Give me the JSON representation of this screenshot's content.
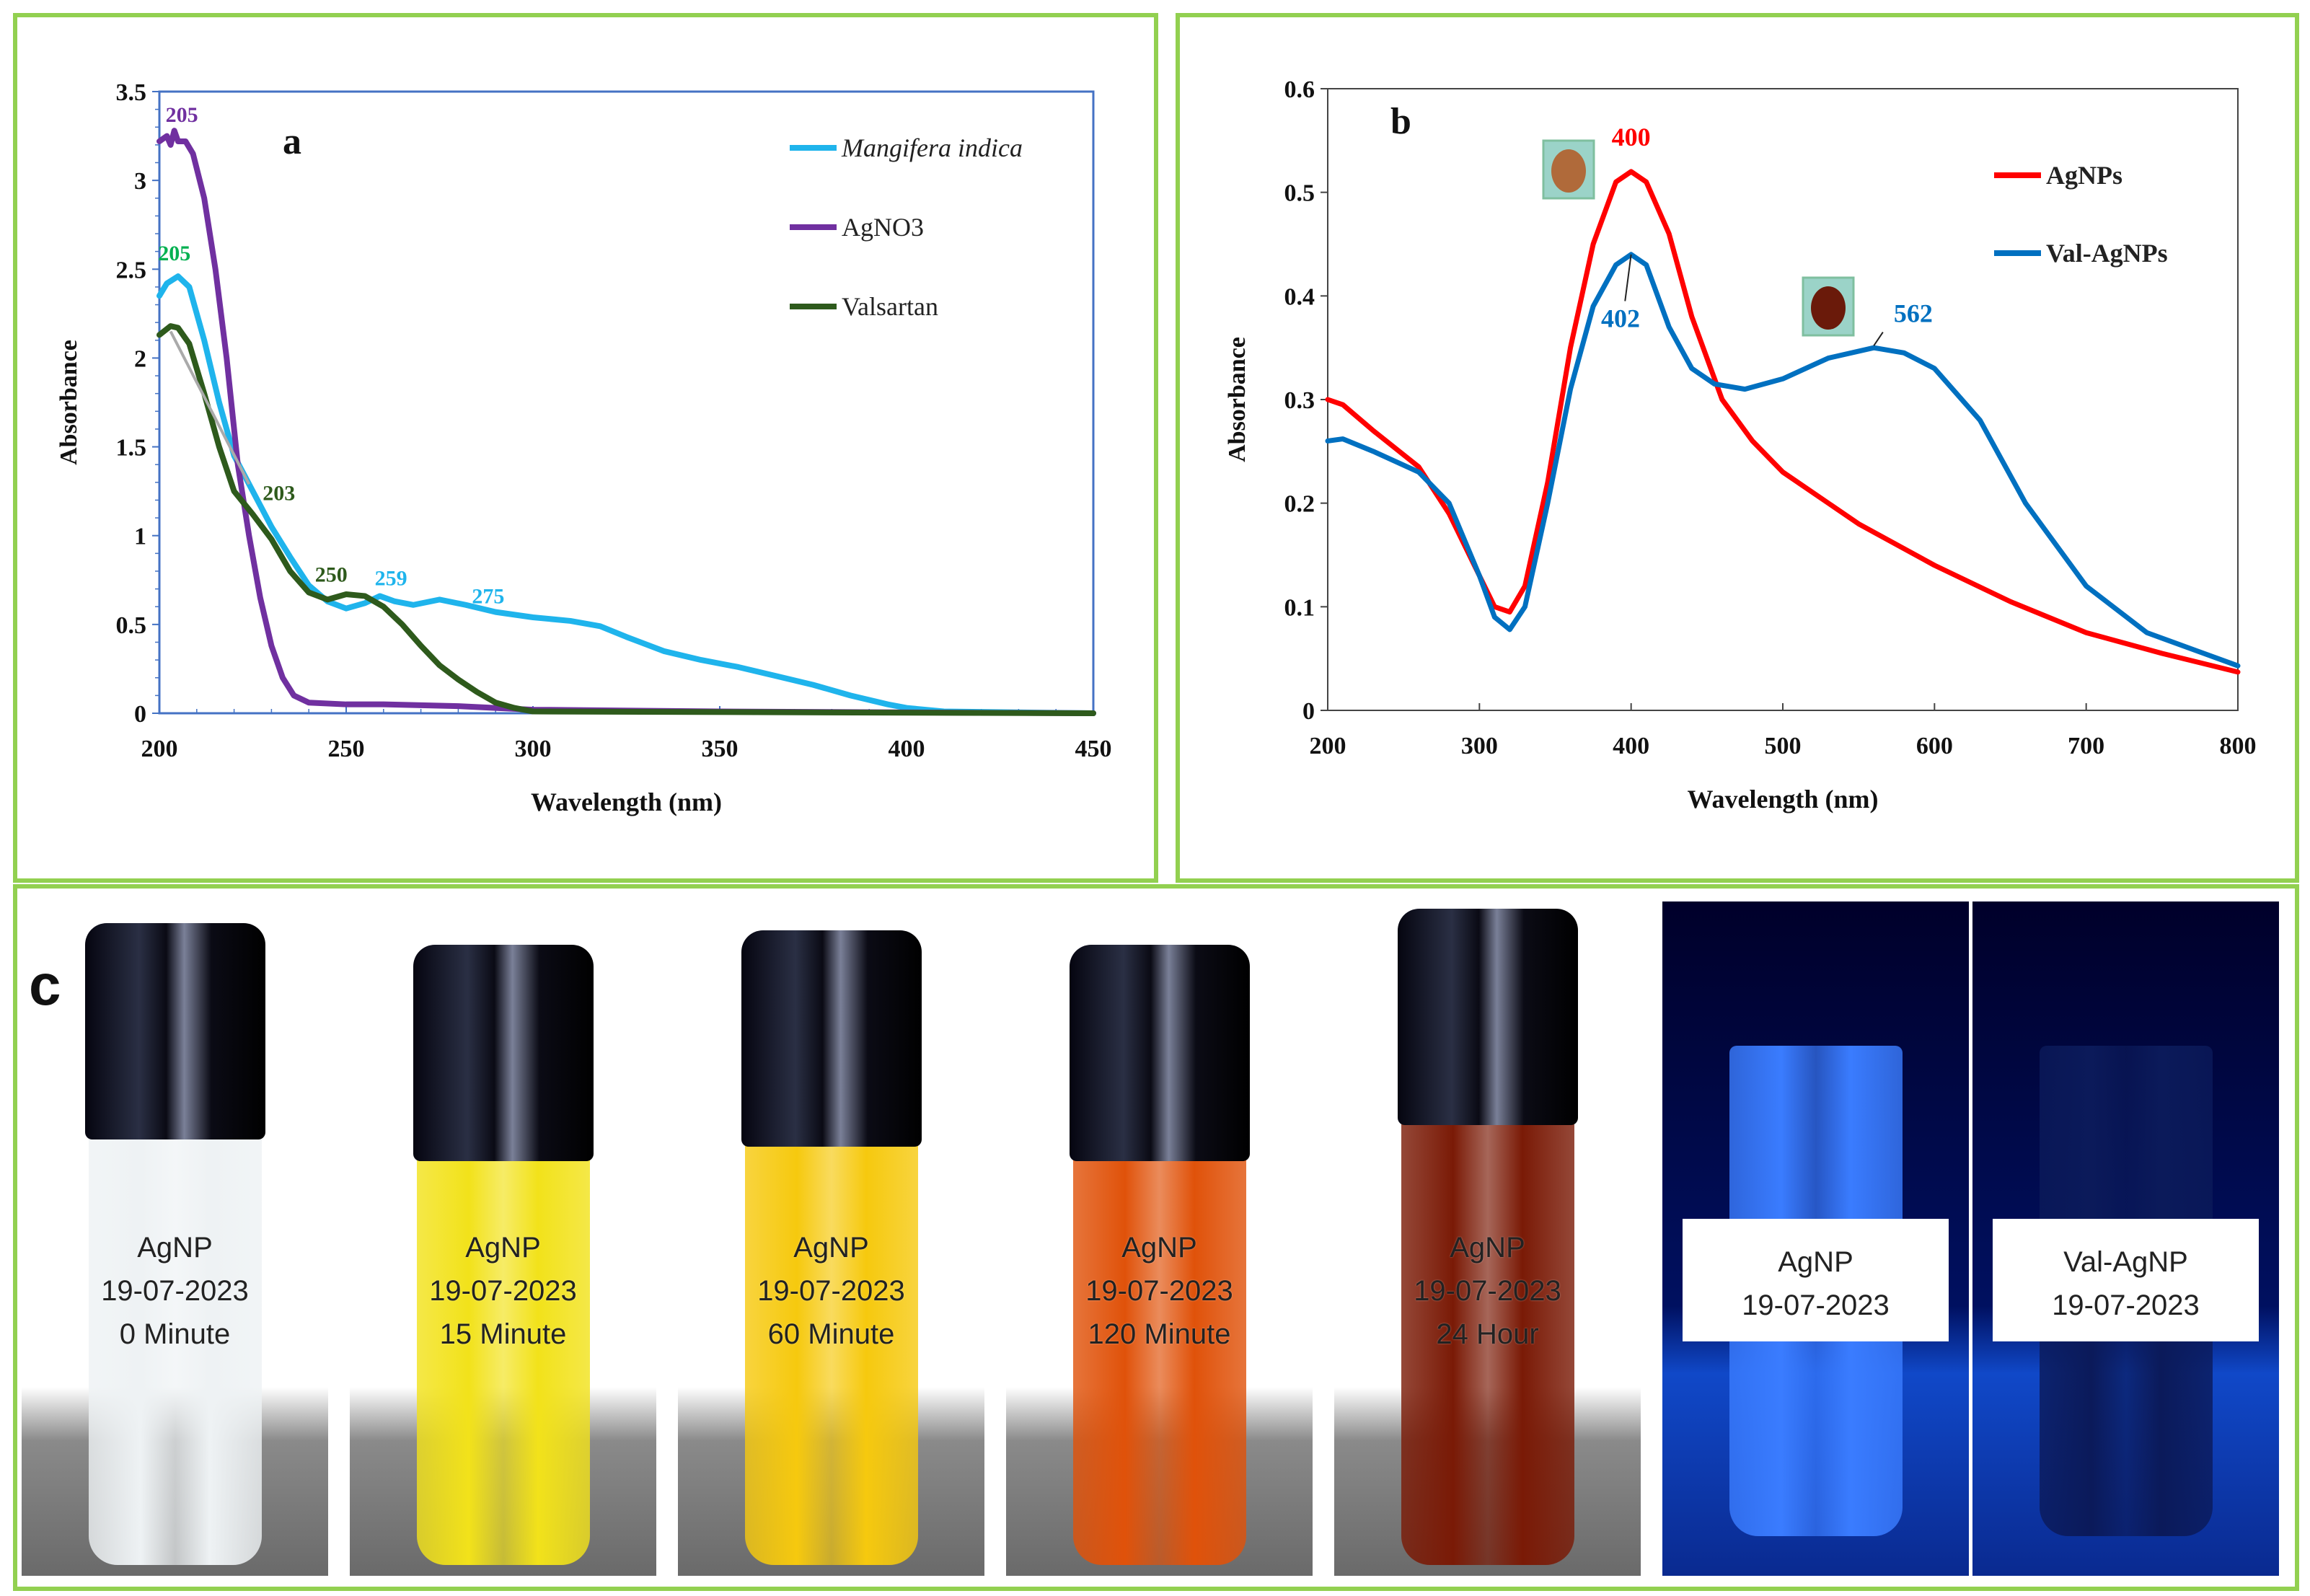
{
  "chart_data": [
    {
      "type": "line",
      "panel_label": "a",
      "xlabel": "Wavelength (nm)",
      "ylabel": "Absorbance",
      "xlim": [
        200,
        450
      ],
      "ylim": [
        0,
        3.5
      ],
      "xticks": [
        "200",
        "250",
        "300",
        "350",
        "400",
        "450"
      ],
      "yticks": [
        "0",
        "0.5",
        "1",
        "1.5",
        "2",
        "2.5",
        "3",
        "3.5"
      ],
      "legend_position": "top-right",
      "series": [
        {
          "name": "Mangifera indica",
          "color": "#1fb4ec",
          "x": [
            200,
            202,
            205,
            208,
            212,
            216,
            220,
            225,
            230,
            235,
            240,
            245,
            250,
            255,
            259,
            263,
            268,
            275,
            282,
            290,
            300,
            310,
            318,
            325,
            335,
            345,
            355,
            365,
            375,
            385,
            395,
            400,
            410,
            450
          ],
          "y": [
            2.35,
            2.42,
            2.46,
            2.4,
            2.1,
            1.75,
            1.45,
            1.25,
            1.05,
            0.88,
            0.72,
            0.63,
            0.59,
            0.62,
            0.66,
            0.63,
            0.61,
            0.64,
            0.61,
            0.57,
            0.54,
            0.52,
            0.49,
            0.43,
            0.35,
            0.3,
            0.26,
            0.21,
            0.16,
            0.1,
            0.05,
            0.03,
            0.01,
            0
          ]
        },
        {
          "name": "AgNO3",
          "color": "#7030a0",
          "x": [
            200,
            202,
            203,
            204,
            205,
            207,
            209,
            212,
            215,
            218,
            221,
            224,
            227,
            230,
            233,
            236,
            240,
            250,
            260,
            280,
            300,
            350,
            450
          ],
          "y": [
            3.22,
            3.25,
            3.2,
            3.28,
            3.22,
            3.22,
            3.15,
            2.9,
            2.5,
            2.0,
            1.4,
            1.0,
            0.65,
            0.38,
            0.2,
            0.1,
            0.06,
            0.05,
            0.05,
            0.04,
            0.02,
            0.01,
            0
          ]
        },
        {
          "name": "Valsartan",
          "color": "#2e5a1c",
          "x": [
            200,
            203,
            205,
            208,
            212,
            216,
            220,
            225,
            230,
            235,
            240,
            245,
            250,
            255,
            260,
            265,
            270,
            275,
            280,
            285,
            290,
            295,
            300,
            450
          ],
          "y": [
            2.13,
            2.18,
            2.17,
            2.08,
            1.8,
            1.5,
            1.25,
            1.12,
            0.98,
            0.8,
            0.68,
            0.64,
            0.67,
            0.66,
            0.6,
            0.5,
            0.38,
            0.27,
            0.19,
            0.12,
            0.06,
            0.03,
            0.01,
            0
          ]
        }
      ],
      "annotations": [
        {
          "text": "205",
          "x": 206,
          "y": 3.33,
          "color": "#7030a0"
        },
        {
          "text": "205",
          "x": 204,
          "y": 2.55,
          "color": "#00b050"
        },
        {
          "text": "203",
          "x": 232,
          "y": 1.2,
          "color": "#2e5a1c"
        },
        {
          "text": "250",
          "x": 246,
          "y": 0.74,
          "color": "#2e5a1c"
        },
        {
          "text": "259",
          "x": 262,
          "y": 0.72,
          "color": "#1fb4ec"
        },
        {
          "text": "275",
          "x": 288,
          "y": 0.62,
          "color": "#1fb4ec"
        }
      ]
    },
    {
      "type": "line",
      "panel_label": "b",
      "xlabel": "Wavelength (nm)",
      "ylabel": "Absorbance",
      "xlim": [
        200,
        800
      ],
      "ylim": [
        0,
        0.6
      ],
      "xticks": [
        "200",
        "300",
        "400",
        "500",
        "600",
        "700",
        "800"
      ],
      "yticks": [
        "0",
        "0.1",
        "0.2",
        "0.3",
        "0.4",
        "0.5",
        "0.6"
      ],
      "legend_position": "top-right",
      "series": [
        {
          "name": "AgNPs",
          "color": "#ff0000",
          "x": [
            200,
            210,
            230,
            260,
            280,
            300,
            310,
            320,
            330,
            345,
            360,
            375,
            390,
            400,
            410,
            425,
            440,
            460,
            480,
            500,
            550,
            600,
            650,
            700,
            750,
            800
          ],
          "y": [
            0.3,
            0.295,
            0.27,
            0.235,
            0.19,
            0.13,
            0.1,
            0.095,
            0.12,
            0.22,
            0.35,
            0.45,
            0.51,
            0.52,
            0.51,
            0.46,
            0.38,
            0.3,
            0.26,
            0.23,
            0.18,
            0.14,
            0.105,
            0.075,
            0.055,
            0.037
          ]
        },
        {
          "name": "Val-AgNPs",
          "color": "#0070c0",
          "x": [
            200,
            210,
            230,
            260,
            280,
            300,
            310,
            320,
            330,
            345,
            360,
            375,
            390,
            400,
            410,
            425,
            440,
            455,
            475,
            500,
            530,
            560,
            580,
            600,
            630,
            660,
            700,
            740,
            800
          ],
          "y": [
            0.26,
            0.262,
            0.25,
            0.23,
            0.2,
            0.13,
            0.09,
            0.078,
            0.1,
            0.2,
            0.31,
            0.39,
            0.43,
            0.44,
            0.43,
            0.37,
            0.33,
            0.315,
            0.31,
            0.32,
            0.34,
            0.35,
            0.345,
            0.33,
            0.28,
            0.2,
            0.12,
            0.075,
            0.043
          ]
        }
      ],
      "annotations": [
        {
          "text": "400",
          "x": 400,
          "y": 0.545,
          "color": "#ff0000"
        },
        {
          "text": "402",
          "x": 393,
          "y": 0.37,
          "color": "#0070c0"
        },
        {
          "text": "562",
          "x": 586,
          "y": 0.375,
          "color": "#0070c0"
        }
      ]
    }
  ],
  "panel_c": {
    "label": "c",
    "photos": [
      {
        "line1": "AgNP",
        "line2": "19-07-2023",
        "line3": "0 Minute",
        "liquid": "#eef2f4"
      },
      {
        "line1": "AgNP",
        "line2": "19-07-2023",
        "line3": "15 Minute",
        "liquid": "#f2e21a"
      },
      {
        "line1": "AgNP",
        "line2": "19-07-2023",
        "line3": "60 Minute",
        "liquid": "#f6c90e"
      },
      {
        "line1": "AgNP",
        "line2": "19-07-2023",
        "line3": "120 Minute",
        "liquid": "#e0520a"
      },
      {
        "line1": "AgNP",
        "line2": "19-07-2023",
        "line3": "24 Hour",
        "liquid": "#7a1a06"
      },
      {
        "line1": "AgNP",
        "line2": "19-07-2023",
        "liquid": "#3a7cff"
      },
      {
        "line1": "Val-AgNP",
        "line2": "19-07-2023",
        "liquid": "#0b1a5a"
      }
    ]
  }
}
